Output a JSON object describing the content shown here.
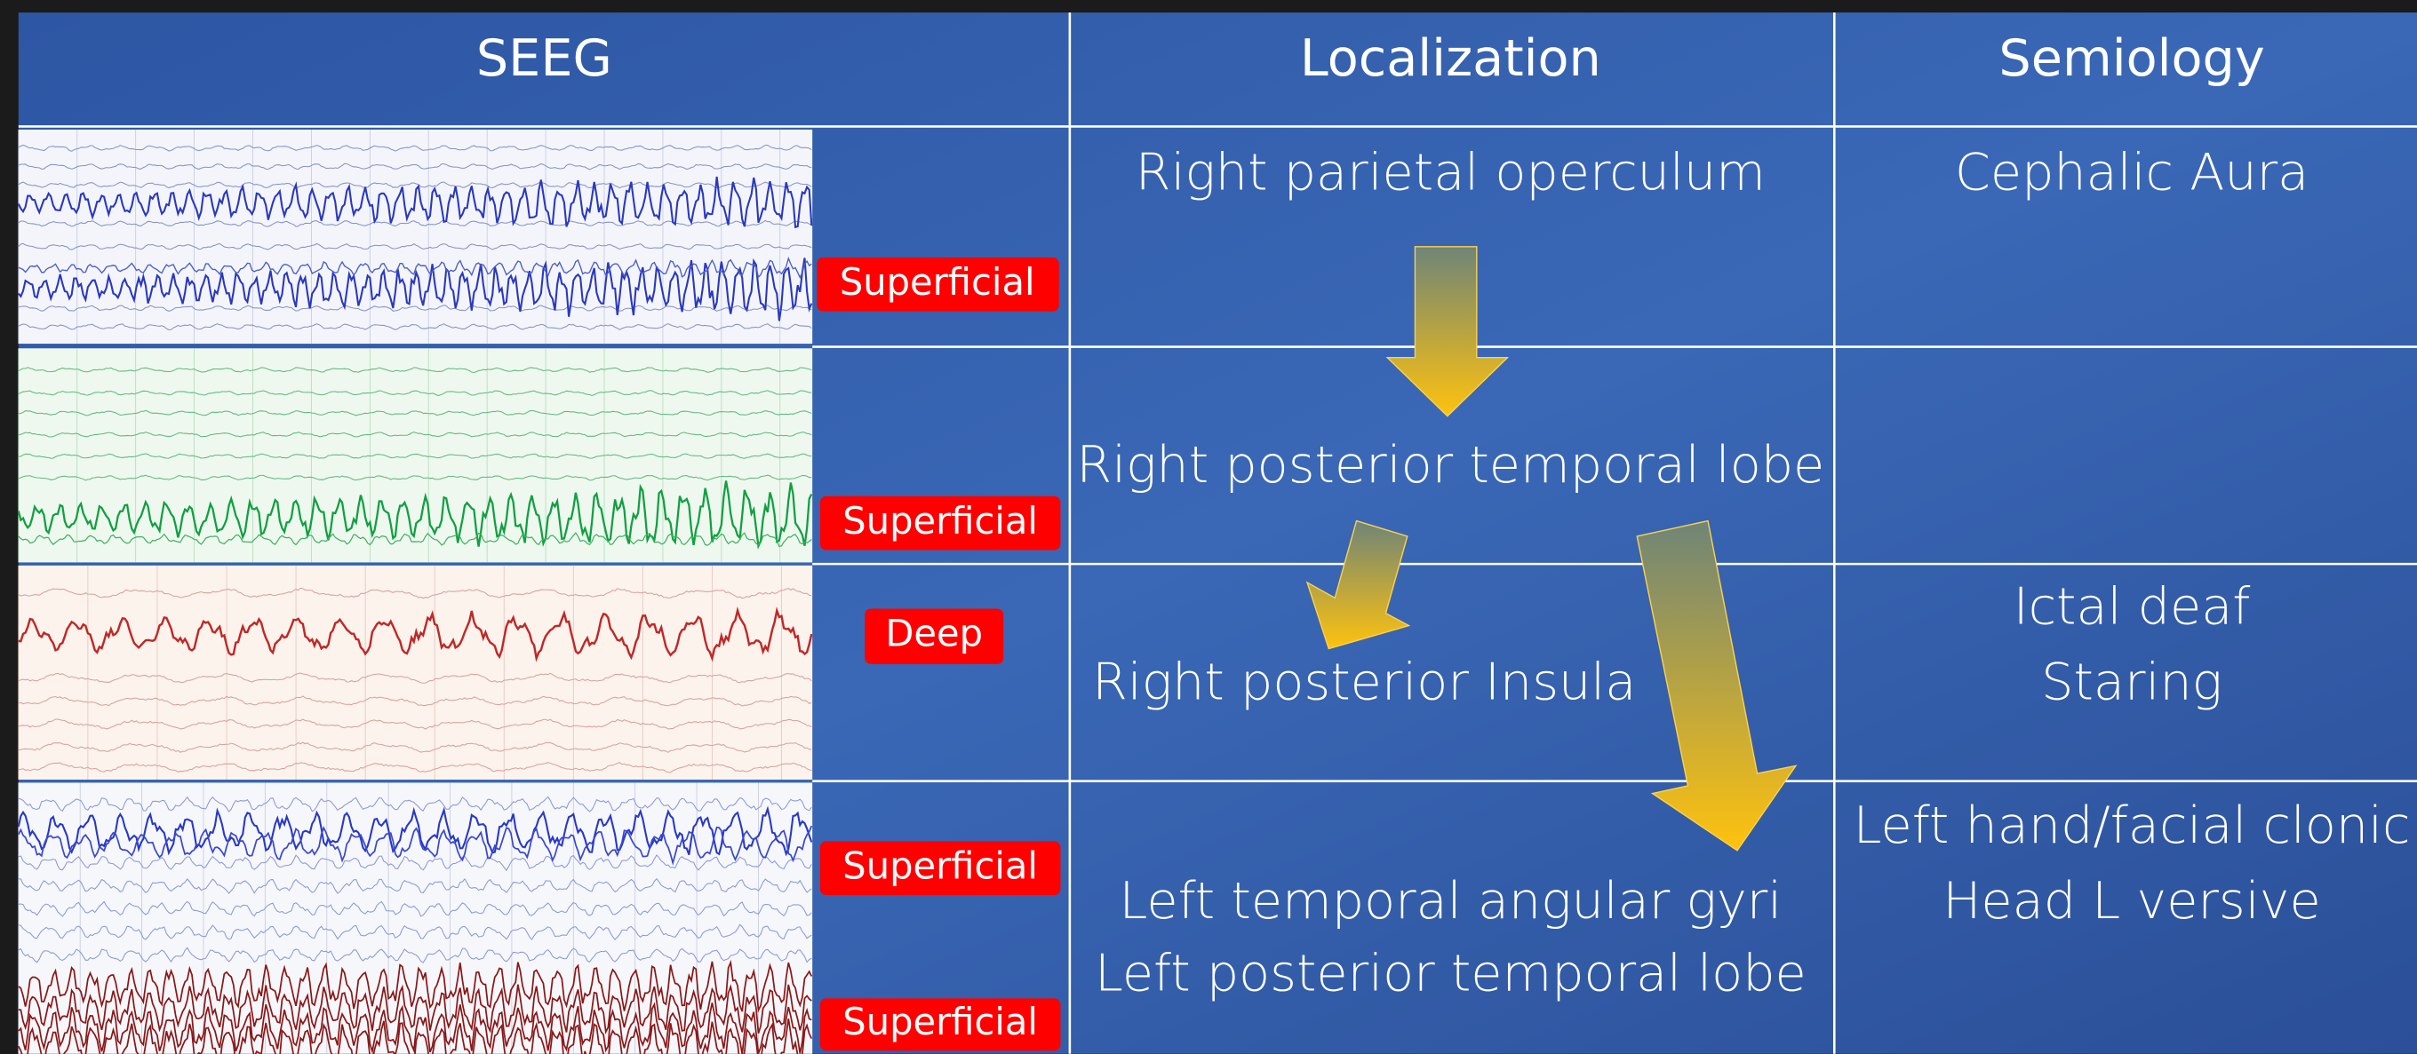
{
  "header": {
    "columns": [
      "SEEG",
      "Localization",
      "Semiology"
    ]
  },
  "seeg_labels": [
    "Superficial",
    "Superficial",
    "Deep",
    "Superficial",
    "Superficial"
  ],
  "localization": [
    "Right parietal operculum",
    "Right posterior temporal lobe",
    "Right posterior Insula",
    "Left temporal angular gyri",
    "Left posterior temporal lobe"
  ],
  "semiology": [
    "Cephalic Aura",
    "Ictal deaf",
    "Staring",
    "Left hand/facial clonic",
    "Head L versive"
  ]
}
